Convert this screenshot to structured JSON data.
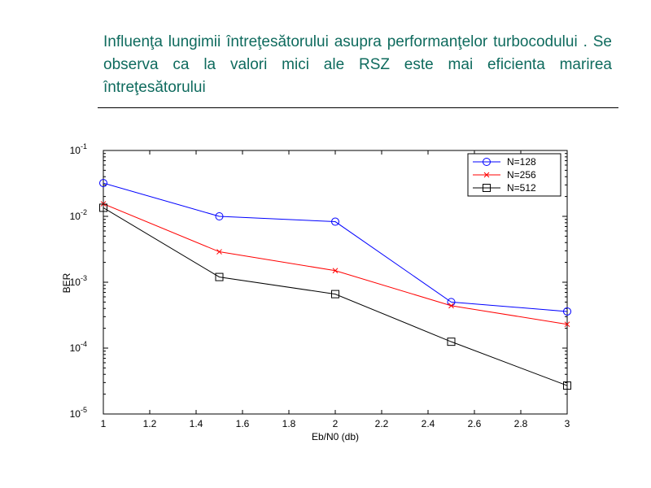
{
  "slide": {
    "heading": "Influenţa lungimii întreţesătorului asupra performanţelor turbocodului . Se observa ca la valori mici ale RSZ este mai eficienta marirea întreţesătorului"
  },
  "chart_data": {
    "type": "line",
    "title": "",
    "xlabel": "Eb/N0 (db)",
    "ylabel": "BER",
    "xlim": [
      1,
      3
    ],
    "ylim": [
      1e-05,
      0.1
    ],
    "yscale": "log",
    "grid": false,
    "legend_position": "top-right",
    "x_ticks": [
      "1",
      "1.2",
      "1.4",
      "1.6",
      "1.8",
      "2",
      "2.2",
      "2.4",
      "2.6",
      "2.8",
      "3"
    ],
    "y_ticks": [
      {
        "base": "10",
        "exp": "-5",
        "value": 1e-05
      },
      {
        "base": "10",
        "exp": "-4",
        "value": 0.0001
      },
      {
        "base": "10",
        "exp": "-3",
        "value": 0.001
      },
      {
        "base": "10",
        "exp": "-2",
        "value": 0.01
      },
      {
        "base": "10",
        "exp": "-1",
        "value": 0.1
      }
    ],
    "x": [
      1,
      1.5,
      2,
      2.5,
      3
    ],
    "series": [
      {
        "name": "N=128",
        "color": "#0000ff",
        "marker": "circle",
        "values": [
          0.032,
          0.01,
          0.0083,
          0.0005,
          0.00036
        ]
      },
      {
        "name": "N=256",
        "color": "#ff0000",
        "marker": "x",
        "values": [
          0.0155,
          0.0029,
          0.0015,
          0.00044,
          0.00023
        ]
      },
      {
        "name": "N=512",
        "color": "#000000",
        "marker": "square",
        "values": [
          0.0135,
          0.0012,
          0.00066,
          0.000125,
          2.7e-05
        ]
      }
    ]
  }
}
